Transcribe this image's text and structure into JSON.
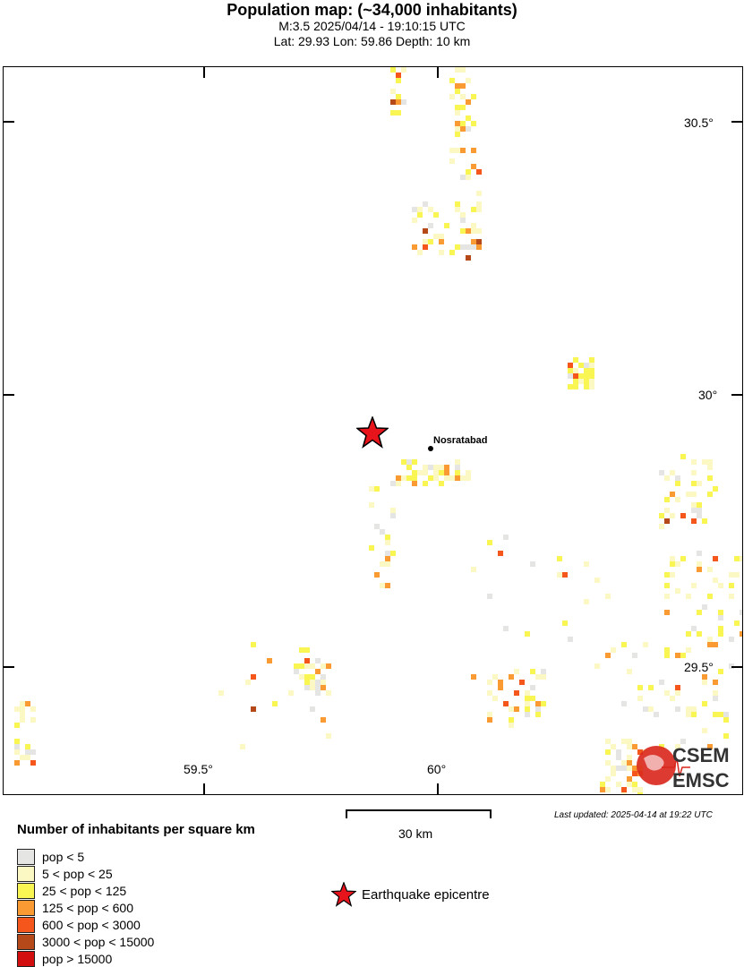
{
  "header": {
    "title": "Population map: (~34,000 inhabitants)",
    "event": "M:3.5 2025/04/14 - 19:10:15 UTC",
    "location": "Lat: 29.93 Lon: 59.86 Depth: 10 km"
  },
  "map": {
    "lon_labels": [
      "59.5°",
      "60°"
    ],
    "lat_labels": [
      "30.5°",
      "30°",
      "29.5°"
    ],
    "city": "Nosratabad",
    "epicentre_color": "#e8141b",
    "logo_text": [
      "CSEM",
      "EMSC"
    ]
  },
  "legend": {
    "title": "Number of inhabitants per square km",
    "items": [
      {
        "label": "pop < 5",
        "color": "#e5e5e3"
      },
      {
        "label": "5 < pop < 25",
        "color": "#fbf8c4"
      },
      {
        "label": "25 < pop < 125",
        "color": "#f9f552"
      },
      {
        "label": "125 < pop < 600",
        "color": "#f99a32"
      },
      {
        "label": "600 < pop < 3000",
        "color": "#f5561c"
      },
      {
        "label": "3000 < pop < 15000",
        "color": "#b5491a"
      },
      {
        "label": "pop > 15000",
        "color": "#d20e0e"
      }
    ],
    "epicentre_label": "Earthquake epicentre"
  },
  "scale": {
    "label": "30 km"
  },
  "updated": "Last updated: 2025-04-14 at 19:22 UTC"
}
